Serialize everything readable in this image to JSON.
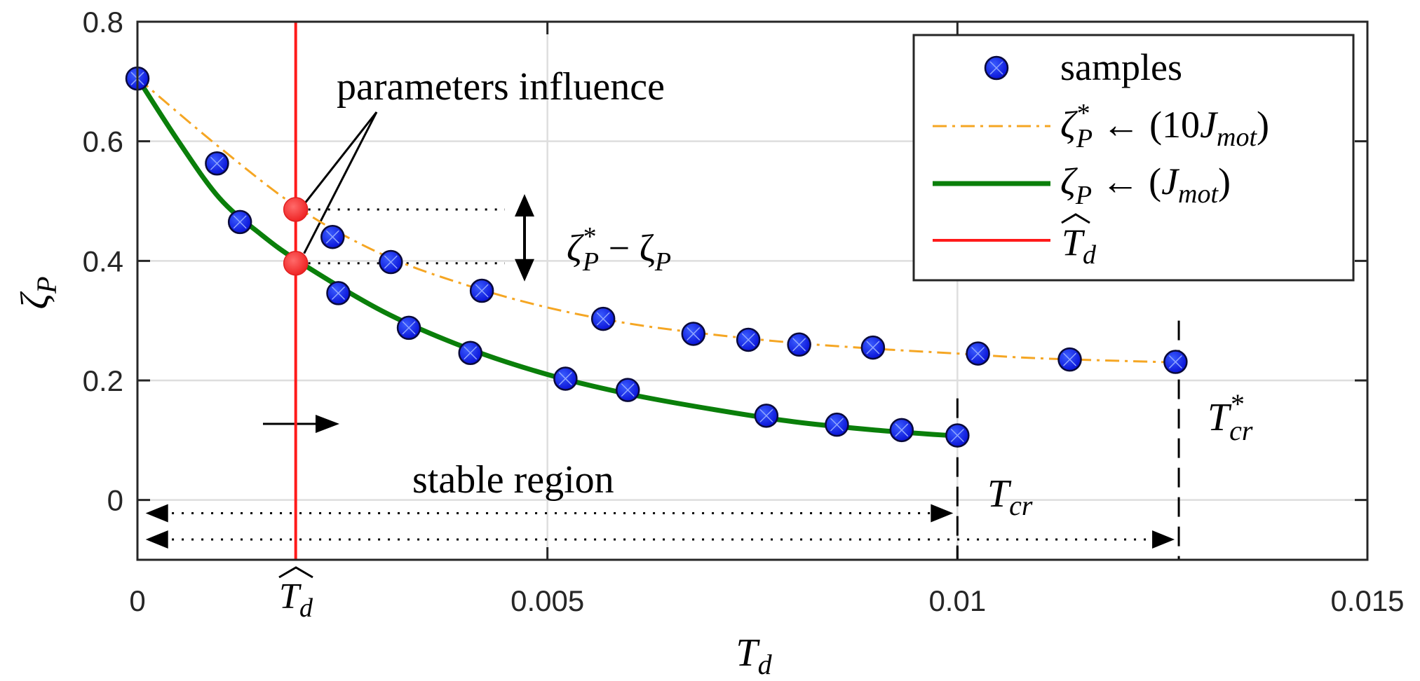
{
  "chart_data": {
    "type": "line",
    "xlabel": "T_d",
    "ylabel": "ζ_P",
    "xlim": [
      0,
      0.015
    ],
    "ylim": [
      -0.1,
      0.8
    ],
    "x_ticks": [
      {
        "value": 0,
        "label": "0"
      },
      {
        "value": 0.005,
        "label": "0.005"
      },
      {
        "value": 0.01,
        "label": "0.01"
      },
      {
        "value": 0.015,
        "label": "0.015"
      }
    ],
    "y_ticks": [
      {
        "value": 0,
        "label": "0"
      },
      {
        "value": 0.2,
        "label": "0.2"
      },
      {
        "value": 0.4,
        "label": "0.4"
      },
      {
        "value": 0.6,
        "label": "0.6"
      },
      {
        "value": 0.8,
        "label": "0.8"
      }
    ],
    "grid": true,
    "legend_position": "top-right",
    "legend": {
      "samples": "samples",
      "zeta_star": "ζ*P ← (10Jmot)",
      "zeta": "ζP ← (Jmot)",
      "td_hat": "T̂d"
    },
    "td_hat": 0.00193,
    "series": [
      {
        "name": "ζ*P ← (10Jmot)",
        "color": "#f5a623",
        "style": "dashdot",
        "x": [
          0,
          0.001,
          0.002,
          0.003,
          0.004,
          0.005,
          0.006,
          0.007,
          0.008,
          0.009,
          0.01,
          0.011,
          0.0127
        ],
        "y": [
          0.706,
          0.59,
          0.485,
          0.41,
          0.36,
          0.322,
          0.295,
          0.277,
          0.263,
          0.253,
          0.245,
          0.237,
          0.23
        ]
      },
      {
        "name": "ζP ← (Jmot)",
        "color": "#0a7f0a",
        "style": "solid",
        "x": [
          0,
          0.0005,
          0.001,
          0.0015,
          0.002,
          0.003,
          0.004,
          0.005,
          0.006,
          0.007,
          0.008,
          0.009,
          0.01
        ],
        "y": [
          0.706,
          0.6,
          0.505,
          0.445,
          0.396,
          0.315,
          0.255,
          0.21,
          0.177,
          0.152,
          0.131,
          0.117,
          0.107
        ]
      }
    ],
    "samples_upper": {
      "x": [
        0,
        0.00097,
        0.00238,
        0.00309,
        0.0042,
        0.00568,
        0.00678,
        0.00745,
        0.00807,
        0.00897,
        0.01025,
        0.01137,
        0.01266
      ],
      "y": [
        0.705,
        0.563,
        0.44,
        0.398,
        0.35,
        0.303,
        0.278,
        0.268,
        0.26,
        0.255,
        0.245,
        0.235,
        0.231
      ]
    },
    "samples_lower": {
      "x": [
        0.00125,
        0.00245,
        0.00331,
        0.00406,
        0.00522,
        0.00598,
        0.00767,
        0.00853,
        0.00932,
        0.01
      ],
      "y": [
        0.465,
        0.346,
        0.288,
        0.246,
        0.203,
        0.184,
        0.141,
        0.126,
        0.117,
        0.108
      ]
    },
    "highlight_points": [
      {
        "x": 0.00193,
        "y": 0.486
      },
      {
        "x": 0.00193,
        "y": 0.396
      }
    ],
    "annotations": {
      "parameters_influence": "parameters influence",
      "zeta_diff": "ζ*P − ζP",
      "stable_region": "stable region",
      "t_cr": "Tcr",
      "t_cr_star": "T*cr"
    },
    "t_cr": 0.01,
    "t_cr_star": 0.0127
  }
}
